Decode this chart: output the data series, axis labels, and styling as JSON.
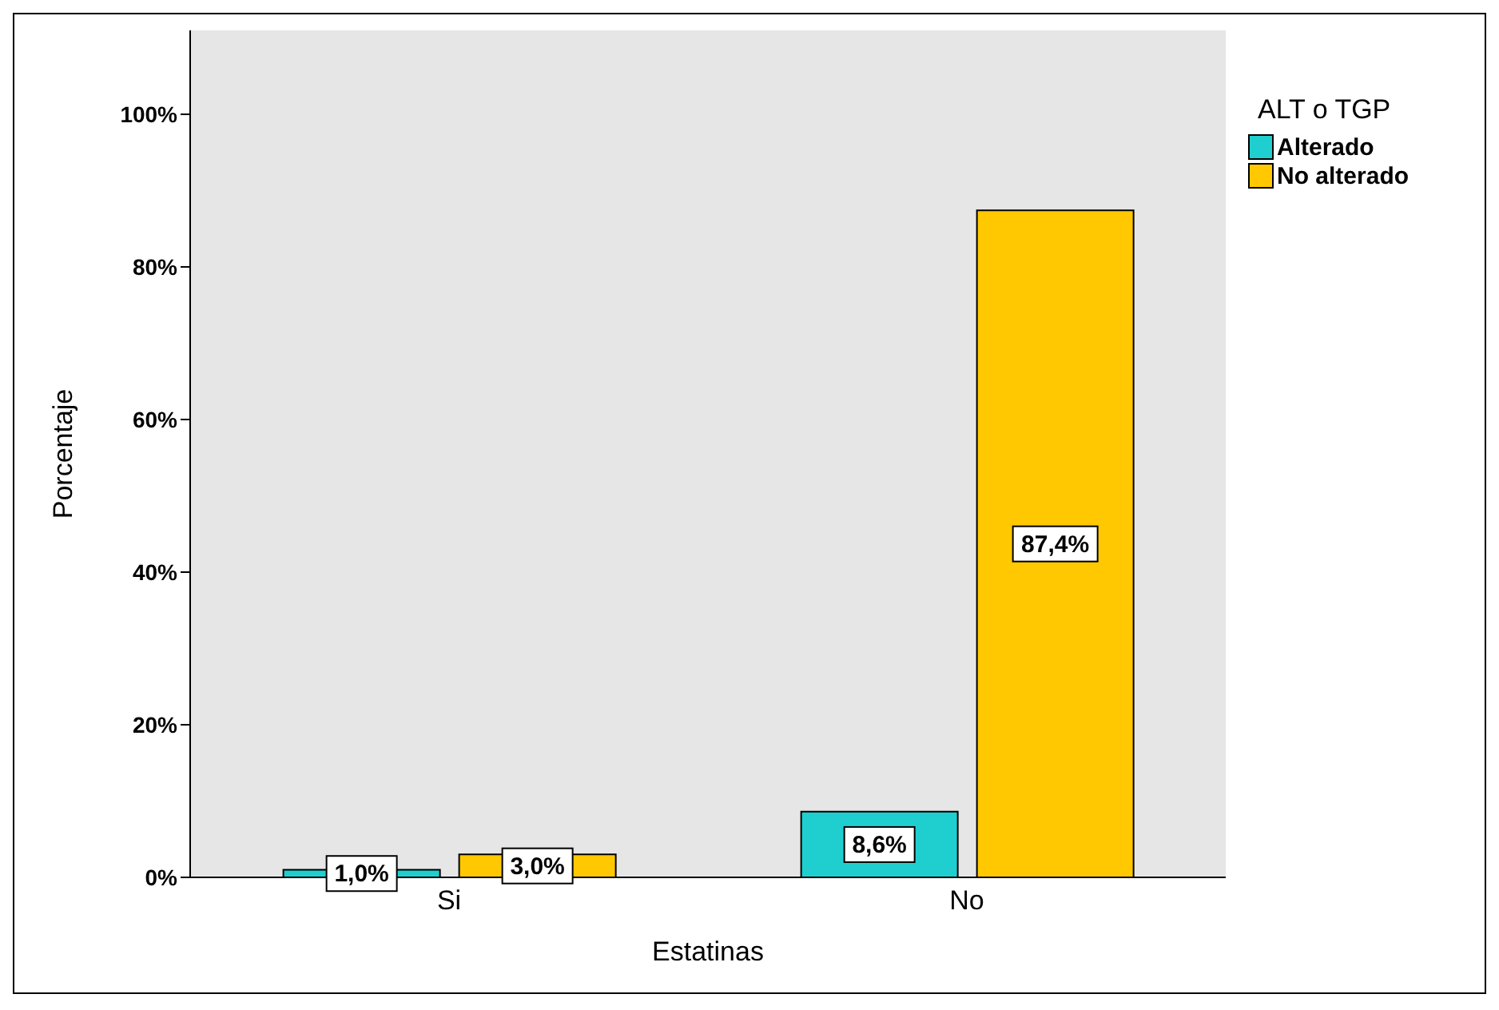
{
  "chart_data": {
    "type": "bar",
    "xlabel": "Estatinas",
    "ylabel": "Porcentaje",
    "legend_title": "ALT o TGP",
    "categories": [
      "Si",
      "No"
    ],
    "series": [
      {
        "name": "Alterado",
        "color": "#1fcfcf",
        "values": [
          1.0,
          8.6
        ],
        "value_labels": [
          "1,0%",
          "8,6%"
        ]
      },
      {
        "name": "No alterado",
        "color": "#ffc800",
        "values": [
          3.0,
          87.4
        ],
        "value_labels": [
          "3,0%",
          "87,4%"
        ]
      }
    ],
    "ylim": [
      0,
      111
    ],
    "yticks": [
      {
        "value": 0,
        "label": "0%"
      },
      {
        "value": 20,
        "label": "20%"
      },
      {
        "value": 40,
        "label": "40%"
      },
      {
        "value": 60,
        "label": "60%"
      },
      {
        "value": 80,
        "label": "80%"
      },
      {
        "value": 100,
        "label": "100%"
      }
    ],
    "grid": false,
    "legend": "top right"
  }
}
